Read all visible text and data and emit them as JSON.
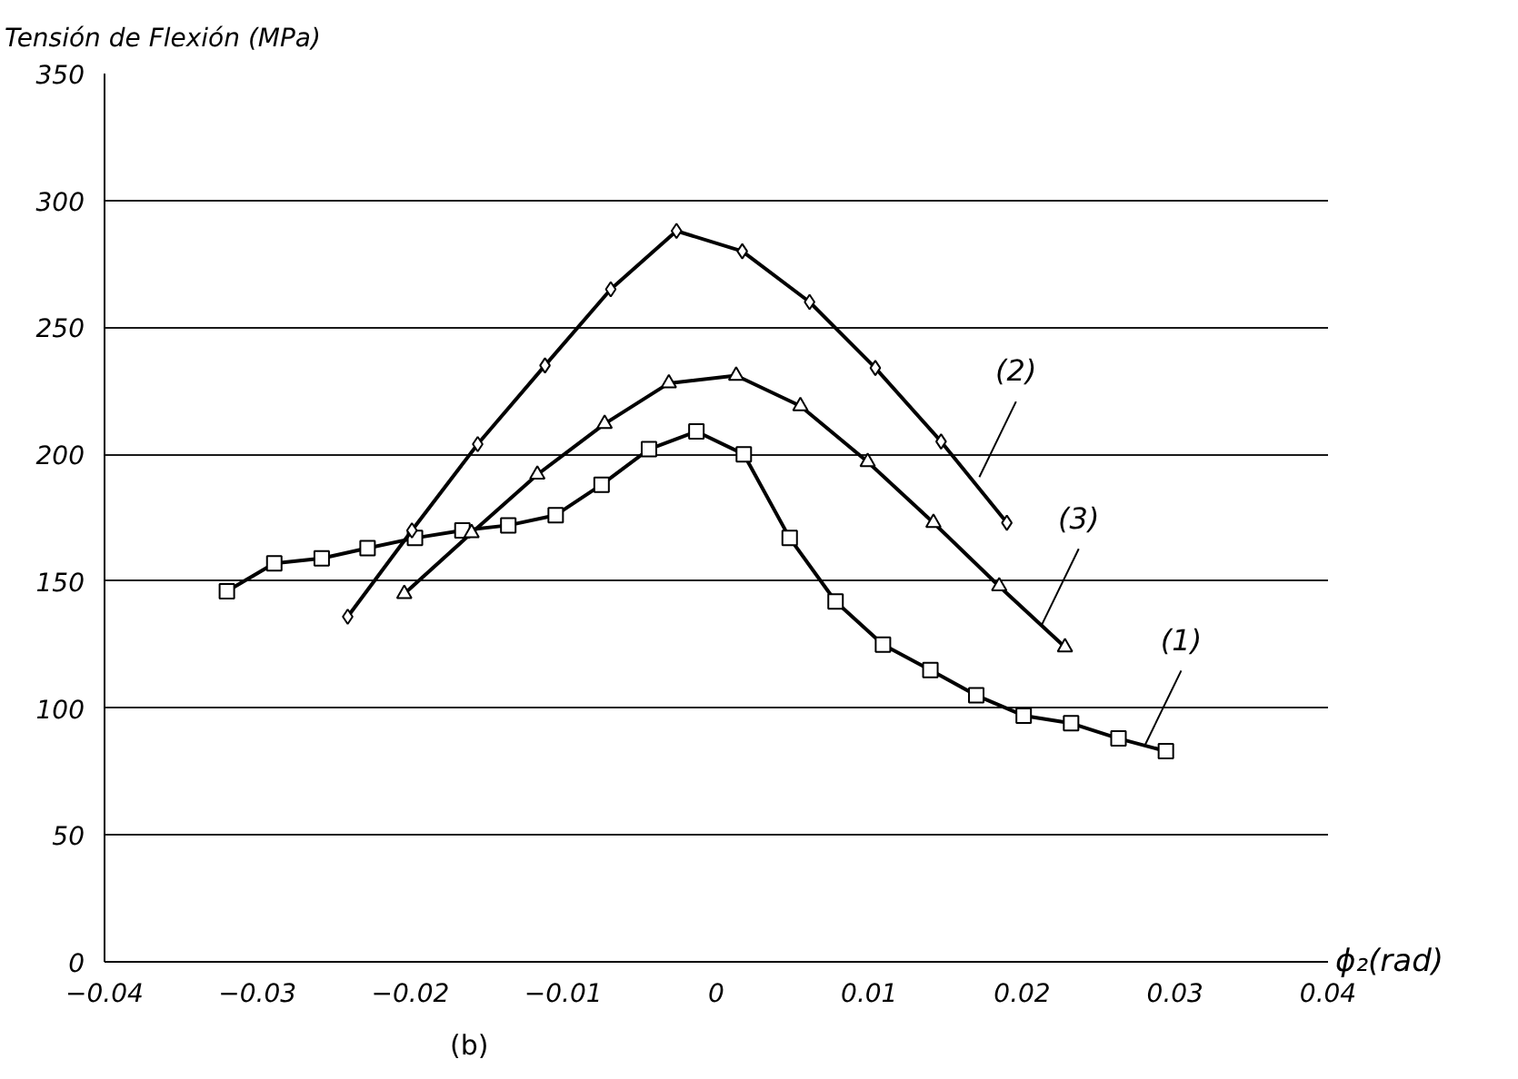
{
  "chart_data": {
    "type": "line",
    "ylabel": "Tensión de Flexión (MPa)",
    "xlabel": "ϕ₂(rad)",
    "xlim": [
      -0.04,
      0.04
    ],
    "xticks": [
      {
        "value": -0.04,
        "label": "−0.04"
      },
      {
        "value": -0.03,
        "label": "−0.03"
      },
      {
        "value": -0.02,
        "label": "−0.02"
      },
      {
        "value": -0.01,
        "label": "−0.01"
      },
      0,
      0.01,
      0.02,
      0.03,
      0.04
    ],
    "ylim": [
      0,
      350
    ],
    "yticks": [
      0,
      50,
      100,
      150,
      200,
      250,
      300,
      350
    ],
    "grid": "y",
    "line_style": "solid",
    "series": [
      {
        "color": "#000000",
        "marker": "square",
        "x": [
          -0.032,
          -0.0289,
          -0.0258,
          -0.0228,
          -0.0197,
          -0.0166,
          -0.0136,
          -0.0105,
          -0.0075,
          -0.0044,
          -0.0013,
          0.0018,
          0.0048,
          0.0078,
          0.0109,
          0.014,
          0.017,
          0.0201,
          0.0232,
          0.0263,
          0.0294
        ],
        "values": [
          146,
          157,
          159,
          163,
          167,
          170,
          172,
          176,
          188,
          202,
          209,
          200,
          167,
          142,
          125,
          115,
          105,
          97,
          94,
          88,
          83
        ]
      },
      {
        "color": "#000000",
        "marker": "diamond",
        "x": [
          -0.0241,
          -0.0199,
          -0.0156,
          -0.0112,
          -0.0069,
          -0.0026,
          0.0017,
          0.0061,
          0.0104,
          0.0147,
          0.019
        ],
        "values": [
          136,
          170,
          204,
          235,
          265,
          288,
          280,
          260,
          234,
          205,
          173
        ]
      },
      {
        "color": "#000000",
        "marker": "triangle",
        "x": [
          -0.0204,
          -0.016,
          -0.0117,
          -0.0073,
          -0.0031,
          0.0013,
          0.0055,
          0.0099,
          0.0142,
          0.0185,
          0.0228
        ],
        "values": [
          145,
          169,
          192,
          212,
          228,
          231,
          219,
          197,
          173,
          148,
          124
        ]
      }
    ],
    "annotations": [
      {
        "text": "(1)",
        "x": 0.028,
        "y": 85
      },
      {
        "text": "(2)",
        "x": 0.0172,
        "y": 191
      },
      {
        "text": "(3)",
        "x": 0.0213,
        "y": 133
      },
      "(b)"
    ]
  }
}
